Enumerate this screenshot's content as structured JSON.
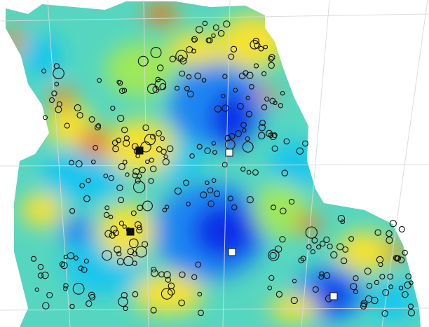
{
  "map": {
    "colors": {
      "background": "#ffffff",
      "coldest": "#0a2ee8",
      "cold": "#1d86f2",
      "cool": "#14c6ee",
      "mild": "#53d8b6",
      "neutral": "#9ee85a",
      "warm": "#f4e233",
      "hot": "#f08a1e",
      "hottest": "#d84a18",
      "grid_line": "#d9d9d9",
      "galaxy_marker": "#111111",
      "cluster_center_dark": "#111111",
      "cluster_center_light": "#ffffff"
    },
    "marker_symbols": {
      "galaxy": "open-circle",
      "overdense_center": "filled-black-square",
      "underdense_center": "filled-white-square"
    },
    "cluster_centers": [
      {
        "kind": "overdense_center",
        "label": ""
      },
      {
        "kind": "overdense_center",
        "label": ""
      },
      {
        "kind": "underdense_center",
        "label": ""
      },
      {
        "kind": "underdense_center",
        "label": ""
      },
      {
        "kind": "underdense_center",
        "label": ""
      }
    ]
  }
}
